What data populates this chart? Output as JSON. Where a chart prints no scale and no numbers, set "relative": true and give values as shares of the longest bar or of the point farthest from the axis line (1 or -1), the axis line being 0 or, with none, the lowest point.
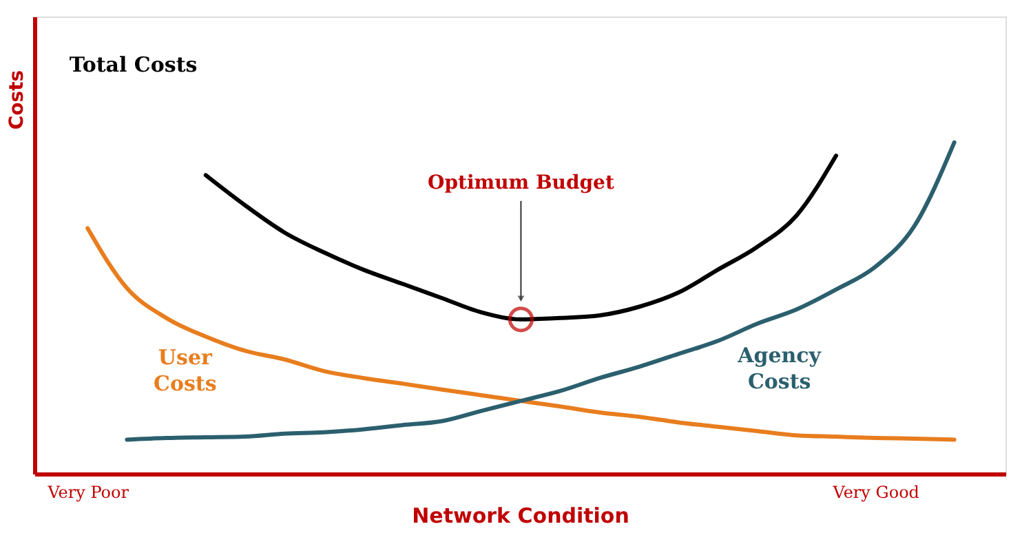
{
  "chart_data": {
    "type": "line",
    "relative": true,
    "xlabel": "Network Condition",
    "ylabel": "Costs",
    "categories": [
      null,
      "Very Poor",
      null,
      null,
      null,
      null,
      null,
      null,
      null,
      null,
      null,
      null,
      null,
      null,
      null,
      null,
      null,
      null,
      null,
      null,
      null,
      "Very Good",
      null,
      null,
      null
    ],
    "grid": false,
    "legend": false,
    "marker": "none",
    "line_style": "solid",
    "series": [
      {
        "name": "Total Costs",
        "color": "#000000",
        "values": [
          null,
          null,
          null,
          null,
          0.901,
          0.81,
          0.728,
          0.668,
          0.616,
          0.573,
          0.53,
          0.487,
          0.466,
          0.47,
          0.478,
          0.504,
          0.547,
          0.616,
          0.685,
          0.78,
          0.96,
          null,
          null,
          null,
          null
        ]
      },
      {
        "name": "User\nCosts",
        "color": "#e87d1e",
        "values": [
          null,
          0.741,
          0.56,
          0.47,
          0.414,
          0.371,
          0.345,
          0.31,
          0.289,
          0.272,
          0.254,
          0.237,
          0.22,
          0.203,
          0.185,
          0.172,
          0.155,
          0.142,
          0.129,
          0.116,
          0.112,
          0.108,
          0.106,
          0.103,
          null
        ]
      },
      {
        "name": "Agency\nCosts",
        "color": "#2b5f6e",
        "values": [
          null,
          null,
          0.103,
          0.108,
          0.11,
          0.112,
          0.121,
          0.125,
          0.134,
          0.147,
          0.159,
          0.19,
          0.22,
          0.25,
          0.289,
          0.323,
          0.362,
          0.401,
          0.453,
          0.496,
          0.556,
          0.625,
          0.75,
          1.0,
          null
        ]
      }
    ],
    "annotations": [
      "Optimum Budget"
    ]
  }
}
